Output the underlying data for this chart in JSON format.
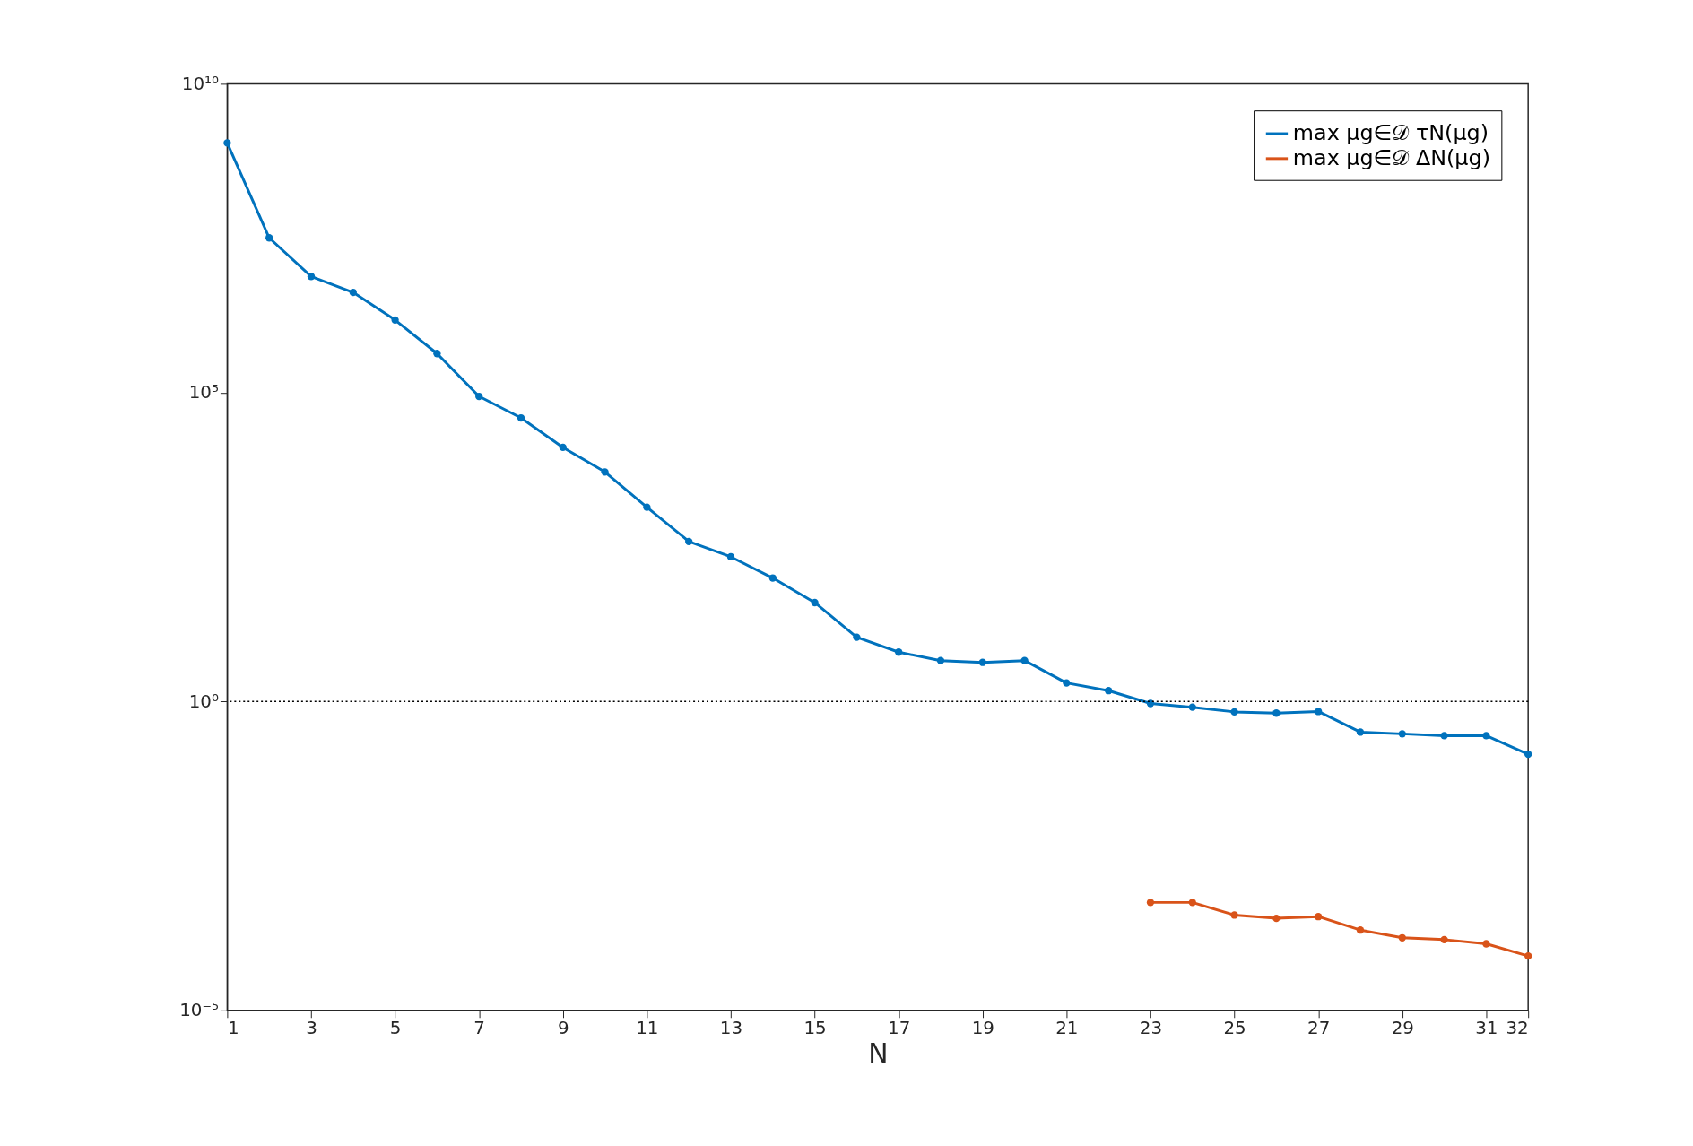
{
  "chart_data": {
    "type": "line",
    "xlabel": "N",
    "log": "y",
    "grid": false,
    "legend": "top right",
    "marker": "circle",
    "line_style": "solid",
    "x": [
      1,
      2,
      3,
      4,
      5,
      6,
      7,
      8,
      9,
      10,
      11,
      12,
      13,
      14,
      15,
      16,
      17,
      18,
      19,
      20,
      21,
      22,
      23,
      24,
      25,
      26,
      27,
      28,
      29,
      30,
      31,
      32
    ],
    "xlim": [
      1,
      32
    ],
    "xticks": [
      1,
      3,
      5,
      7,
      9,
      11,
      13,
      15,
      17,
      19,
      21,
      23,
      25,
      27,
      29,
      31,
      32
    ],
    "ylim": [
      1e-05,
      10000000000.0
    ],
    "yticks": [
      {
        "value": 1e-05,
        "label": "10⁻⁵"
      },
      {
        "value": 1,
        "label": "10⁰"
      },
      {
        "value": 100000.0,
        "label": "10⁵"
      },
      {
        "value": 10000000000.0,
        "label": "10¹⁰"
      }
    ],
    "series": [
      {
        "name": "max μg∈𝒟 τN(μg)",
        "color": "#0072bd",
        "values": [
          1100000000.0,
          32000000.0,
          7600000.0,
          4200000.0,
          1500000.0,
          430000.0,
          87000.0,
          39000.0,
          13000.0,
          5200.0,
          1400.0,
          390,
          220,
          100,
          40,
          11,
          6.3,
          4.6,
          4.3,
          4.6,
          2.0,
          1.5,
          0.93,
          0.81,
          0.68,
          0.65,
          0.69,
          0.32,
          0.3,
          0.28,
          0.28,
          0.14
        ]
      },
      {
        "name": "max μg∈𝒟 ΔN(μg)",
        "color": "#d95319",
        "values": [
          null,
          null,
          null,
          null,
          null,
          null,
          null,
          null,
          null,
          null,
          null,
          null,
          null,
          null,
          null,
          null,
          null,
          null,
          null,
          null,
          null,
          null,
          0.00056,
          0.00056,
          0.00035,
          0.00031,
          0.00033,
          0.0002,
          0.00015,
          0.00014,
          0.00012,
          7.6e-05
        ]
      }
    ],
    "ref_lines": [
      {
        "axis": "y",
        "value": 1,
        "color": "#000000",
        "line_style": "dotted"
      }
    ]
  }
}
